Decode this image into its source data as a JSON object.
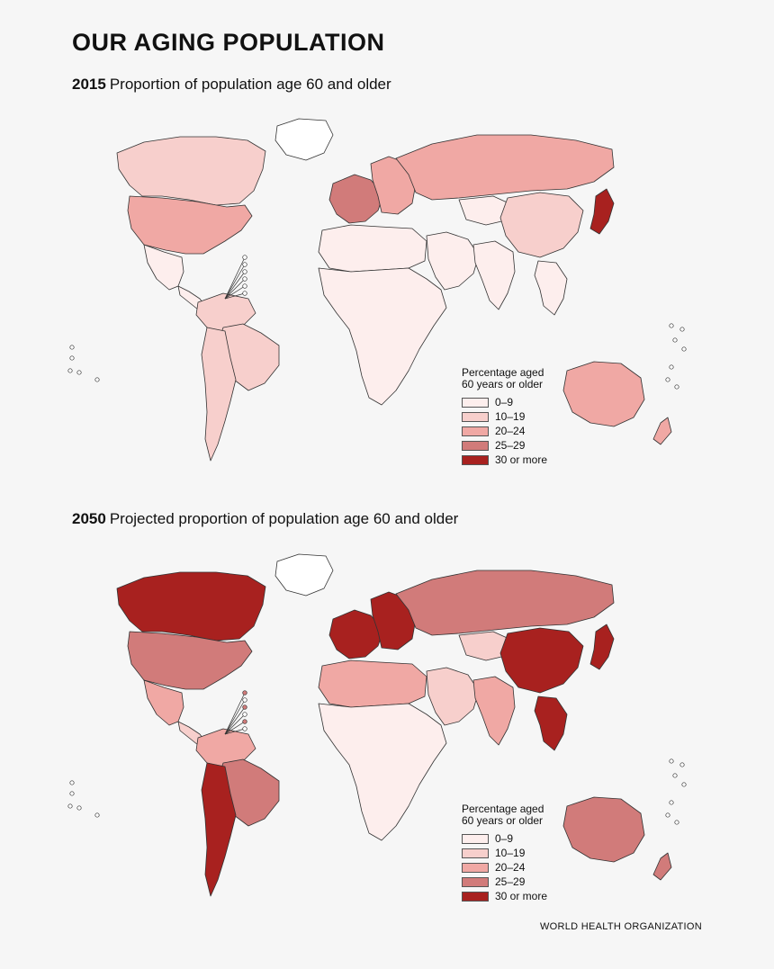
{
  "title": "OUR AGING POPULATION",
  "maps": [
    {
      "year": "2015",
      "caption": "Proportion of population age 60 and older",
      "regions": {
        "greenland": "none",
        "canada": "10-19",
        "usa": "20-24",
        "mexico": "0-9",
        "central_america": "0-9",
        "south_america_north": "10-19",
        "brazil": "10-19",
        "southern_cone": "10-19",
        "africa": "0-9",
        "north_africa": "0-9",
        "middle_east": "0-9",
        "western_europe": "25-29",
        "eastern_europe": "20-24",
        "russia": "20-24",
        "central_asia": "0-9",
        "china": "10-19",
        "india": "0-9",
        "southeast_asia": "0-9",
        "japan": "30 or more",
        "australia": "20-24",
        "new_zealand": "20-24"
      }
    },
    {
      "year": "2050",
      "caption": "Projected proportion of population age 60 and older",
      "regions": {
        "greenland": "none",
        "canada": "30 or more",
        "usa": "25-29",
        "mexico": "20-24",
        "central_america": "10-19",
        "south_america_north": "20-24",
        "brazil": "25-29",
        "southern_cone": "30 or more",
        "africa": "0-9",
        "north_africa": "20-24",
        "middle_east": "10-19",
        "western_europe": "30 or more",
        "eastern_europe": "30 or more",
        "russia": "25-29",
        "central_asia": "10-19",
        "china": "30 or more",
        "india": "20-24",
        "southeast_asia": "30 or more",
        "japan": "30 or more",
        "australia": "25-29",
        "new_zealand": "25-29"
      }
    }
  ],
  "legend": {
    "title_line1": "Percentage aged",
    "title_line2": "60 years or older",
    "items": [
      {
        "label": "0–9",
        "color": "#fdeeed"
      },
      {
        "label": "10–19",
        "color": "#f7cfcc"
      },
      {
        "label": "20–24",
        "color": "#f0a8a4"
      },
      {
        "label": "25–29",
        "color": "#d17b7a"
      },
      {
        "label": "30 or more",
        "color": "#a8211f"
      }
    ]
  },
  "color_map": {
    "none": "#ffffff",
    "0-9": "#fdeeed",
    "10-19": "#f7cfcc",
    "20-24": "#f0a8a4",
    "25-29": "#d17b7a",
    "30 or more": "#a8211f"
  },
  "source": "WORLD HEALTH ORGANIZATION"
}
